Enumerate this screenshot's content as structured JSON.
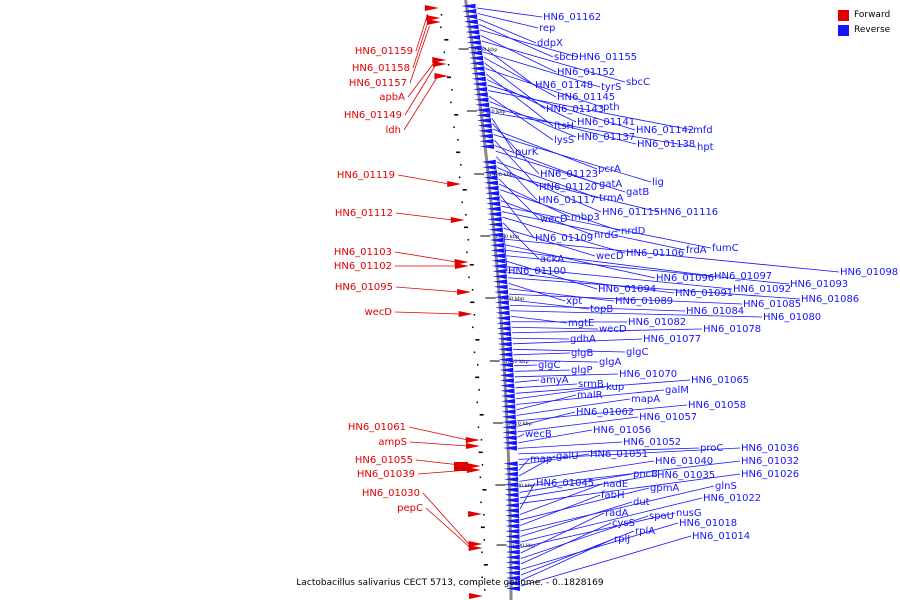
{
  "legend": {
    "forward_label": "Forward",
    "reverse_label": "Reverse",
    "forward_color": "#e00000",
    "reverse_color": "#1414ff"
  },
  "caption": "Lactobacillus salivarius CECT 5713, complete genome. - 0..1828169",
  "colors": {
    "backbone": "#888888",
    "tick": "#000000"
  },
  "scale_labels": [
    "1440 kbp",
    "1420 kbp",
    "1400 kbp",
    "1380 kbp",
    "1360 kbp",
    "1340 kbp",
    "1320 kbp",
    "1300 kbp",
    "1280 kbp"
  ],
  "forward_labels": [
    "HN6_01159",
    "HN6_01158",
    "HN6_01157",
    "apbA",
    "HN6_01149",
    "ldh",
    "HN6_01119",
    "HN6_01112",
    "HN6_01103",
    "HN6_01102",
    "HN6_01095",
    "wecD",
    "HN6_01061",
    "ampS",
    "HN6_01055",
    "HN6_01039",
    "HN6_01030",
    "pepC"
  ],
  "reverse_labels": [
    "HN6_01162",
    "rep",
    "ddpX",
    "sbcD",
    "HN6_01155",
    "HN6_01152",
    "sbcC",
    "HN6_01148",
    "tyrS",
    "HN6_01145",
    "HN6_01143",
    "pth",
    "ftsH",
    "HN6_01141",
    "HN6_01142",
    "mfd",
    "lysS",
    "HN6_01137",
    "HN6_01138",
    "hpt",
    "purK",
    "HN6_01123",
    "pcrA",
    "lig",
    "HN6_01120",
    "gatA",
    "gatB",
    "HN6_01117",
    "trmA",
    "HN6_01115",
    "HN6_01116",
    "wecD",
    "mbp3",
    "nrdD",
    "HN6_01109",
    "nrdG",
    "fumC",
    "frdA",
    "HN6_01106",
    "ackA",
    "wecD",
    "HN6_01100",
    "HN6_01098",
    "HN6_01096",
    "HN6_01097",
    "HN6_01093",
    "HN6_01094",
    "HN6_01092",
    "HN6_01091",
    "HN6_01086",
    "xpt",
    "HN6_01089",
    "HN6_01085",
    "topB",
    "HN6_01084",
    "HN6_01080",
    "mgtE",
    "HN6_01082",
    "wecD",
    "HN6_01078",
    "gdhA",
    "HN6_01077",
    "glgC",
    "glgB",
    "glgA",
    "glgC",
    "glgP",
    "HN6_01070",
    "amyA",
    "srmB",
    "HN6_01065",
    "kup",
    "galM",
    "malR",
    "mapA",
    "HN6_01058",
    "HN6_01062",
    "HN6_01057",
    "wecB",
    "HN6_01056",
    "HN6_01052",
    "proC",
    "HN6_01036",
    "HN6_01051",
    "map",
    "galU",
    "HN6_01040",
    "HN6_01032",
    "pncB",
    "HN6_01035",
    "HN6_01026",
    "HN6_01045",
    "nadE",
    "gpmA",
    "fabH",
    "glnS",
    "dut",
    "HN6_01022",
    "nusG",
    "radA",
    "spoU",
    "cysS",
    "HN6_01018",
    "rplA",
    "rplJ",
    "HN6_01014"
  ]
}
